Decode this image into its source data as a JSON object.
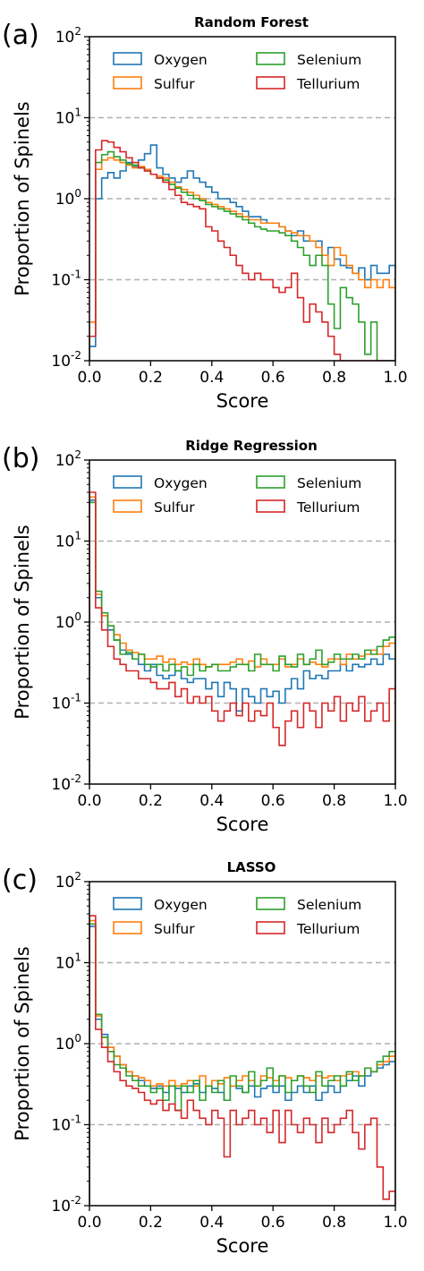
{
  "chart_data": [
    {
      "type": "histogram",
      "panel_label": "(a)",
      "title": "Random Forest",
      "xlabel": "Score",
      "ylabel": "Proportion of Spinels",
      "xlim": [
        0,
        1
      ],
      "ylim": [
        0.01,
        100
      ],
      "yscale": "log",
      "x_ticks": [
        "0.0",
        "0.2",
        "0.4",
        "0.6",
        "0.8",
        "1.0"
      ],
      "y_ticks": [
        {
          "base": "10",
          "exp": "-2"
        },
        {
          "base": "10",
          "exp": "-1"
        },
        {
          "base": "10",
          "exp": "0"
        },
        {
          "base": "10",
          "exp": "1"
        },
        {
          "base": "10",
          "exp": "2"
        }
      ],
      "grid": "dashed horizontal at decades",
      "legend_position": "top",
      "bins": 50,
      "series": [
        {
          "name": "Oxygen",
          "color": "#1f77b4",
          "values": [
            0.015,
            1.0,
            1.8,
            2.1,
            1.8,
            2.2,
            2.8,
            2.5,
            3.0,
            3.6,
            4.6,
            2.4,
            2.0,
            1.8,
            1.6,
            1.8,
            2.2,
            1.8,
            1.6,
            1.4,
            1.2,
            1.0,
            1.0,
            0.9,
            0.8,
            0.7,
            0.6,
            0.6,
            0.55,
            0.5,
            0.5,
            0.45,
            0.4,
            0.35,
            0.4,
            0.3,
            0.3,
            0.3,
            0.2,
            0.25,
            0.18,
            0.15,
            0.14,
            0.12,
            0.14,
            0.1,
            0.15,
            0.12,
            0.12,
            0.15
          ]
        },
        {
          "name": "Sulfur",
          "color": "#ff7f0e",
          "values": [
            0.03,
            2.3,
            3.0,
            3.2,
            3.0,
            2.8,
            2.6,
            2.4,
            2.5,
            2.3,
            2.0,
            1.9,
            1.8,
            1.6,
            1.4,
            1.3,
            1.2,
            1.1,
            1.0,
            0.9,
            0.85,
            0.8,
            0.75,
            0.7,
            0.65,
            0.6,
            0.55,
            0.55,
            0.5,
            0.5,
            0.5,
            0.45,
            0.4,
            0.38,
            0.35,
            0.35,
            0.3,
            0.25,
            0.2,
            0.15,
            0.25,
            0.2,
            0.15,
            0.12,
            0.1,
            0.08,
            0.1,
            0.08,
            0.1,
            0.08
          ]
        },
        {
          "name": "Selenium",
          "color": "#2ca02c",
          "values": [
            0.02,
            2.8,
            3.5,
            3.8,
            3.3,
            3.0,
            2.7,
            2.6,
            2.4,
            2.2,
            2.0,
            1.8,
            1.7,
            1.5,
            1.35,
            1.2,
            1.1,
            1.0,
            0.95,
            0.85,
            0.8,
            0.75,
            0.7,
            0.65,
            0.6,
            0.55,
            0.5,
            0.45,
            0.42,
            0.4,
            0.4,
            0.38,
            0.35,
            0.3,
            0.25,
            0.2,
            0.15,
            0.2,
            0.15,
            0.05,
            0.025,
            0.08,
            0.06,
            0.05,
            0.03,
            0.012,
            0.03,
            0.01,
            0.01,
            0.01
          ]
        },
        {
          "name": "Tellurium",
          "color": "#d62728",
          "values": [
            0.02,
            4.0,
            5.2,
            5.0,
            4.3,
            3.8,
            3.2,
            2.8,
            2.4,
            2.2,
            2.0,
            1.8,
            1.6,
            1.3,
            1.1,
            0.9,
            0.85,
            0.8,
            0.75,
            0.45,
            0.4,
            0.3,
            0.25,
            0.2,
            0.15,
            0.12,
            0.1,
            0.12,
            0.1,
            0.1,
            0.08,
            0.07,
            0.08,
            0.12,
            0.06,
            0.03,
            0.05,
            0.04,
            0.03,
            0.02,
            0.012,
            0.01,
            0.01,
            0.01,
            0.01,
            0.01,
            0.01,
            0.01,
            0.01,
            0.01
          ]
        }
      ]
    },
    {
      "type": "histogram",
      "panel_label": "(b)",
      "title": "Ridge Regression",
      "xlabel": "Score",
      "ylabel": "Proportion of Spinels",
      "xlim": [
        0,
        1
      ],
      "ylim": [
        0.01,
        100
      ],
      "yscale": "log",
      "x_ticks": [
        "0.0",
        "0.2",
        "0.4",
        "0.6",
        "0.8",
        "1.0"
      ],
      "y_ticks": [
        {
          "base": "10",
          "exp": "-2"
        },
        {
          "base": "10",
          "exp": "-1"
        },
        {
          "base": "10",
          "exp": "0"
        },
        {
          "base": "10",
          "exp": "1"
        },
        {
          "base": "10",
          "exp": "2"
        }
      ],
      "grid": "dashed horizontal at decades",
      "legend_position": "top",
      "bins": 50,
      "series": [
        {
          "name": "Oxygen",
          "color": "#1f77b4",
          "values": [
            32,
            2.0,
            1.2,
            0.8,
            0.6,
            0.45,
            0.4,
            0.35,
            0.3,
            0.25,
            0.3,
            0.22,
            0.2,
            0.22,
            0.25,
            0.2,
            0.18,
            0.2,
            0.2,
            0.15,
            0.18,
            0.12,
            0.18,
            0.15,
            0.08,
            0.15,
            0.12,
            0.1,
            0.15,
            0.12,
            0.14,
            0.1,
            0.15,
            0.2,
            0.15,
            0.25,
            0.2,
            0.22,
            0.2,
            0.25,
            0.25,
            0.3,
            0.25,
            0.3,
            0.28,
            0.3,
            0.35,
            0.3,
            0.4,
            0.35
          ]
        },
        {
          "name": "Sulfur",
          "color": "#ff7f0e",
          "values": [
            35,
            2.2,
            1.2,
            0.9,
            0.7,
            0.55,
            0.45,
            0.42,
            0.4,
            0.35,
            0.35,
            0.38,
            0.32,
            0.35,
            0.3,
            0.32,
            0.3,
            0.35,
            0.3,
            0.28,
            0.3,
            0.3,
            0.3,
            0.32,
            0.35,
            0.3,
            0.33,
            0.28,
            0.35,
            0.3,
            0.3,
            0.35,
            0.28,
            0.3,
            0.35,
            0.3,
            0.32,
            0.3,
            0.28,
            0.35,
            0.35,
            0.3,
            0.4,
            0.35,
            0.38,
            0.4,
            0.45,
            0.4,
            0.5,
            0.55
          ]
        },
        {
          "name": "Selenium",
          "color": "#2ca02c",
          "values": [
            30,
            2.4,
            1.3,
            0.9,
            0.6,
            0.4,
            0.42,
            0.35,
            0.4,
            0.3,
            0.28,
            0.3,
            0.25,
            0.3,
            0.25,
            0.28,
            0.22,
            0.3,
            0.25,
            0.28,
            0.3,
            0.25,
            0.25,
            0.28,
            0.3,
            0.3,
            0.25,
            0.4,
            0.3,
            0.3,
            0.25,
            0.38,
            0.3,
            0.28,
            0.4,
            0.3,
            0.35,
            0.45,
            0.3,
            0.32,
            0.4,
            0.35,
            0.35,
            0.4,
            0.35,
            0.45,
            0.4,
            0.5,
            0.6,
            0.65
          ]
        },
        {
          "name": "Tellurium",
          "color": "#d62728",
          "values": [
            40,
            1.5,
            0.8,
            0.5,
            0.35,
            0.3,
            0.25,
            0.25,
            0.2,
            0.2,
            0.18,
            0.15,
            0.15,
            0.18,
            0.12,
            0.15,
            0.1,
            0.12,
            0.1,
            0.12,
            0.08,
            0.06,
            0.08,
            0.1,
            0.07,
            0.1,
            0.06,
            0.08,
            0.07,
            0.1,
            0.05,
            0.03,
            0.06,
            0.08,
            0.05,
            0.1,
            0.08,
            0.05,
            0.1,
            0.08,
            0.12,
            0.06,
            0.1,
            0.08,
            0.12,
            0.06,
            0.08,
            0.1,
            0.06,
            0.15
          ]
        }
      ]
    },
    {
      "type": "histogram",
      "panel_label": "(c)",
      "title": "LASSO",
      "xlabel": "Score",
      "ylabel": "Proportion of Spinels",
      "xlim": [
        0,
        1
      ],
      "ylim": [
        0.01,
        100
      ],
      "yscale": "log",
      "x_ticks": [
        "0.0",
        "0.2",
        "0.4",
        "0.6",
        "0.8",
        "1.0"
      ],
      "y_ticks": [
        {
          "base": "10",
          "exp": "-2"
        },
        {
          "base": "10",
          "exp": "-1"
        },
        {
          "base": "10",
          "exp": "0"
        },
        {
          "base": "10",
          "exp": "1"
        },
        {
          "base": "10",
          "exp": "2"
        }
      ],
      "grid": "dashed horizontal at decades",
      "legend_position": "top",
      "bins": 50,
      "series": [
        {
          "name": "Oxygen",
          "color": "#1f77b4",
          "values": [
            28,
            2.0,
            1.3,
            0.9,
            0.7,
            0.55,
            0.45,
            0.4,
            0.35,
            0.3,
            0.28,
            0.3,
            0.25,
            0.3,
            0.28,
            0.25,
            0.3,
            0.32,
            0.25,
            0.3,
            0.28,
            0.25,
            0.2,
            0.3,
            0.28,
            0.25,
            0.3,
            0.22,
            0.28,
            0.3,
            0.25,
            0.3,
            0.2,
            0.25,
            0.3,
            0.25,
            0.3,
            0.2,
            0.25,
            0.3,
            0.25,
            0.3,
            0.35,
            0.4,
            0.3,
            0.4,
            0.45,
            0.5,
            0.55,
            0.6
          ]
        },
        {
          "name": "Sulfur",
          "color": "#ff7f0e",
          "values": [
            33,
            2.2,
            1.2,
            0.9,
            0.7,
            0.55,
            0.45,
            0.4,
            0.38,
            0.35,
            0.3,
            0.32,
            0.3,
            0.35,
            0.3,
            0.32,
            0.35,
            0.3,
            0.4,
            0.3,
            0.35,
            0.32,
            0.38,
            0.3,
            0.35,
            0.4,
            0.35,
            0.3,
            0.4,
            0.38,
            0.35,
            0.4,
            0.38,
            0.35,
            0.4,
            0.38,
            0.35,
            0.4,
            0.38,
            0.4,
            0.35,
            0.4,
            0.42,
            0.45,
            0.4,
            0.5,
            0.45,
            0.55,
            0.6,
            0.7
          ]
        },
        {
          "name": "Selenium",
          "color": "#2ca02c",
          "values": [
            30,
            2.3,
            1.2,
            0.8,
            0.55,
            0.5,
            0.4,
            0.35,
            0.3,
            0.3,
            0.25,
            0.28,
            0.2,
            0.3,
            0.15,
            0.3,
            0.25,
            0.35,
            0.2,
            0.3,
            0.25,
            0.35,
            0.2,
            0.4,
            0.3,
            0.25,
            0.45,
            0.3,
            0.35,
            0.5,
            0.3,
            0.4,
            0.25,
            0.35,
            0.4,
            0.3,
            0.25,
            0.45,
            0.3,
            0.35,
            0.4,
            0.3,
            0.45,
            0.35,
            0.4,
            0.5,
            0.45,
            0.6,
            0.7,
            0.8
          ]
        },
        {
          "name": "Tellurium",
          "color": "#d62728",
          "values": [
            38,
            1.5,
            0.9,
            0.6,
            0.45,
            0.35,
            0.3,
            0.28,
            0.25,
            0.2,
            0.18,
            0.2,
            0.15,
            0.18,
            0.15,
            0.12,
            0.2,
            0.15,
            0.12,
            0.1,
            0.15,
            0.12,
            0.04,
            0.15,
            0.1,
            0.12,
            0.15,
            0.1,
            0.12,
            0.08,
            0.15,
            0.06,
            0.15,
            0.1,
            0.08,
            0.12,
            0.1,
            0.06,
            0.12,
            0.08,
            0.1,
            0.12,
            0.15,
            0.08,
            0.05,
            0.1,
            0.12,
            0.03,
            0.012,
            0.015
          ]
        }
      ]
    }
  ]
}
